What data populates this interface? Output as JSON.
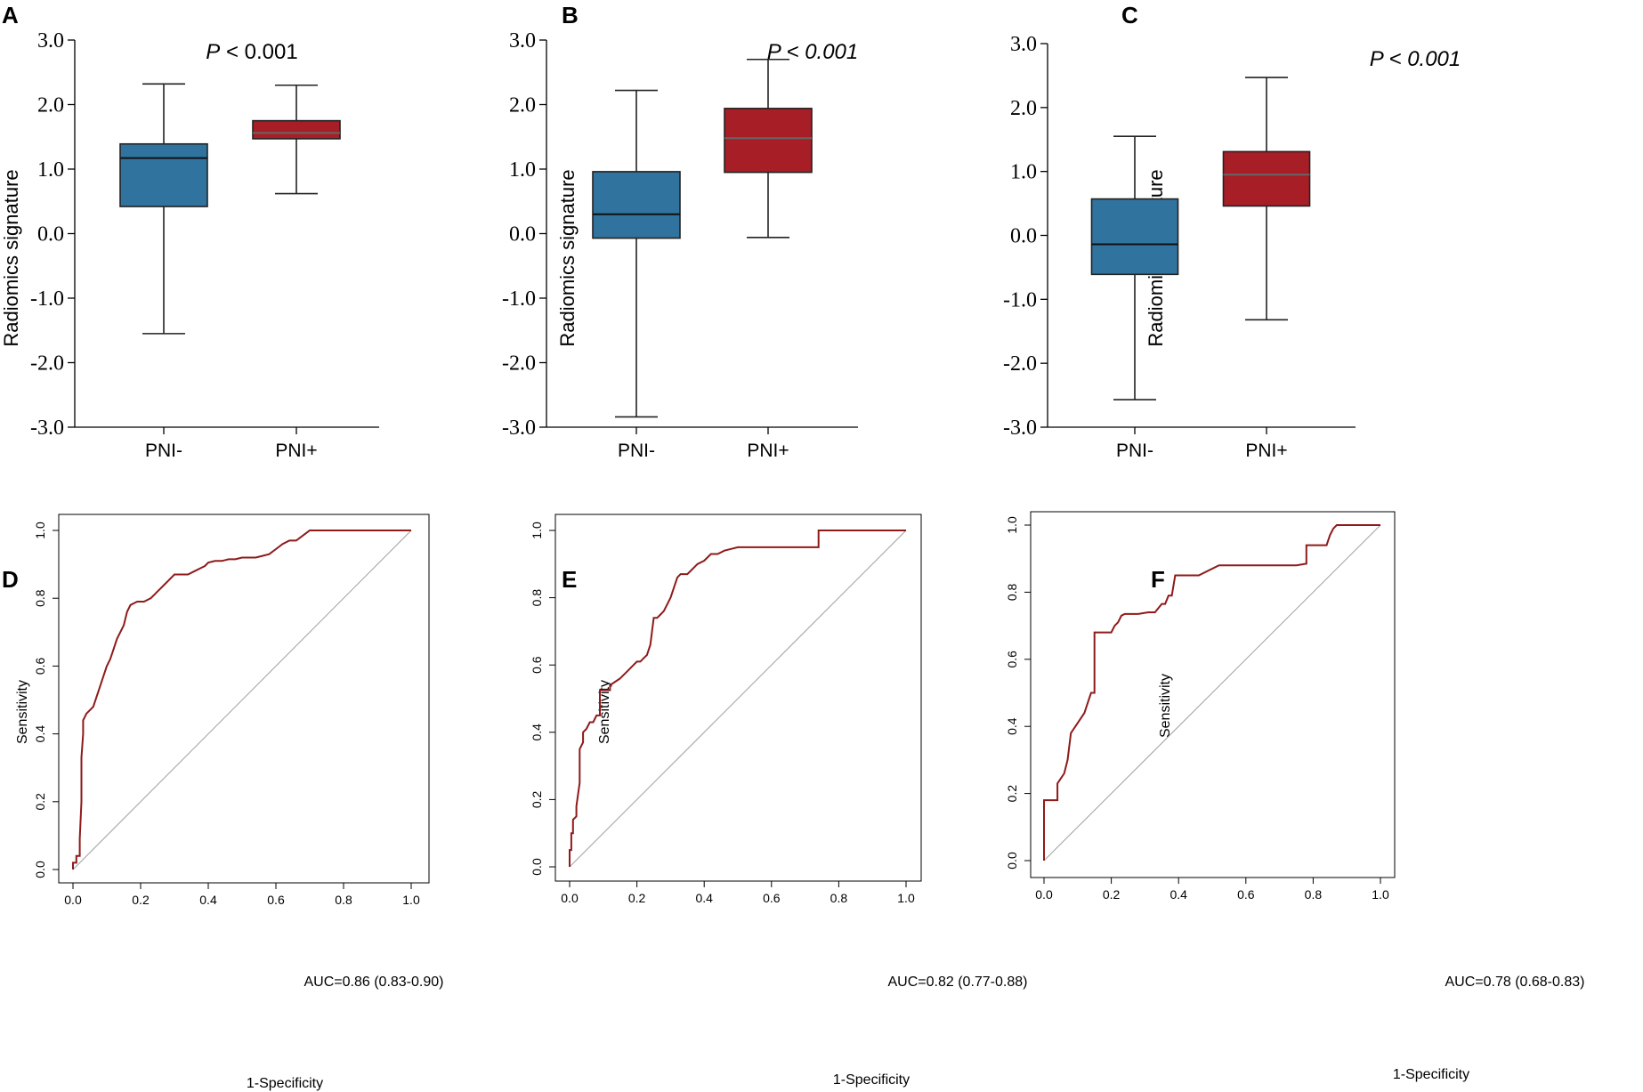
{
  "colors": {
    "neg": "#31739f",
    "pos": "#a81e26",
    "roc": "#8e1a1a",
    "diag": "#a0a0a0",
    "median_neg": "#111111",
    "median_pos": "#666666"
  },
  "chart_data": [
    {
      "id": "A",
      "type": "box",
      "panel_label": "A",
      "ylabel": "Radiomics signature",
      "p_prefix": "P",
      "p_rest": " < 0.001",
      "p_italic_all": false,
      "ylim": [
        -3.0,
        3.0
      ],
      "yticks": [
        "3.0",
        "2.0",
        "1.0",
        "0.0",
        "-1.0",
        "-2.0",
        "-3.0"
      ],
      "categories": [
        "PNI-",
        "PNI+"
      ],
      "boxes": [
        {
          "name": "PNI-",
          "min": -1.55,
          "q1": 0.42,
          "median": 1.17,
          "q3": 1.39,
          "max": 2.32
        },
        {
          "name": "PNI+",
          "min": 0.62,
          "q1": 1.47,
          "median": 1.56,
          "q3": 1.75,
          "max": 2.3
        }
      ]
    },
    {
      "id": "B",
      "type": "box",
      "panel_label": "B",
      "ylabel": "Radiomics signature",
      "p_prefix": "P",
      "p_rest": " < 0.001",
      "p_italic_all": true,
      "ylim": [
        -3.0,
        3.0
      ],
      "yticks": [
        "3.0",
        "2.0",
        "1.0",
        "0.0",
        "-1.0",
        "-2.0",
        "-3.0"
      ],
      "categories": [
        "PNI-",
        "PNI+"
      ],
      "boxes": [
        {
          "name": "PNI-",
          "min": -2.84,
          "q1": -0.07,
          "median": 0.3,
          "q3": 0.96,
          "max": 2.22
        },
        {
          "name": "PNI+",
          "min": -0.06,
          "q1": 0.95,
          "median": 1.48,
          "q3": 1.94,
          "max": 2.7
        }
      ]
    },
    {
      "id": "C",
      "type": "box",
      "panel_label": "C",
      "ylabel": "Radiomics signature",
      "p_prefix": "P",
      "p_rest": " < 0.001",
      "p_italic_all": true,
      "ylim": [
        -3.0,
        3.0
      ],
      "yticks": [
        "3.0",
        "2.0",
        "1.0",
        "0.0",
        "-1.0",
        "-2.0",
        "-3.0"
      ],
      "categories": [
        "PNI-",
        "PNI+"
      ],
      "boxes": [
        {
          "name": "PNI-",
          "min": -2.57,
          "q1": -0.61,
          "median": -0.14,
          "q3": 0.57,
          "max": 1.55
        },
        {
          "name": "PNI+",
          "min": -1.32,
          "q1": 0.46,
          "median": 0.95,
          "q3": 1.31,
          "max": 2.47
        }
      ]
    },
    {
      "id": "D",
      "type": "line",
      "panel_label": "D",
      "xlabel": "1-Specificity",
      "ylabel": "Sensitivity",
      "ticks": [
        "0.0",
        "0.2",
        "0.4",
        "0.6",
        "0.8",
        "1.0"
      ],
      "auc_text": "AUC=0.86 (0.83-0.90)",
      "x": [
        0.0,
        0.0,
        0.01,
        0.01,
        0.02,
        0.02,
        0.025,
        0.025,
        0.03,
        0.03,
        0.04,
        0.05,
        0.06,
        0.07,
        0.08,
        0.09,
        0.1,
        0.11,
        0.12,
        0.13,
        0.14,
        0.15,
        0.16,
        0.17,
        0.18,
        0.19,
        0.2,
        0.21,
        0.22,
        0.23,
        0.24,
        0.25,
        0.26,
        0.27,
        0.28,
        0.3,
        0.32,
        0.34,
        0.36,
        0.38,
        0.39,
        0.4,
        0.42,
        0.44,
        0.46,
        0.48,
        0.5,
        0.52,
        0.54,
        0.56,
        0.58,
        0.6,
        0.62,
        0.64,
        0.66,
        0.68,
        0.7,
        0.8,
        0.9,
        1.0
      ],
      "y": [
        0.0,
        0.02,
        0.02,
        0.04,
        0.04,
        0.09,
        0.2,
        0.33,
        0.4,
        0.44,
        0.46,
        0.47,
        0.48,
        0.51,
        0.54,
        0.57,
        0.6,
        0.62,
        0.65,
        0.68,
        0.7,
        0.72,
        0.76,
        0.78,
        0.785,
        0.79,
        0.79,
        0.79,
        0.795,
        0.8,
        0.81,
        0.82,
        0.83,
        0.84,
        0.85,
        0.87,
        0.87,
        0.87,
        0.88,
        0.89,
        0.895,
        0.905,
        0.91,
        0.91,
        0.915,
        0.915,
        0.92,
        0.92,
        0.92,
        0.925,
        0.93,
        0.945,
        0.96,
        0.97,
        0.97,
        0.985,
        1.0,
        1.0,
        1.0,
        1.0
      ]
    },
    {
      "id": "E",
      "type": "line",
      "panel_label": "E",
      "xlabel": "1-Specificity",
      "ylabel": "Sensitivity",
      "ticks": [
        "0.0",
        "0.2",
        "0.4",
        "0.6",
        "0.8",
        "1.0"
      ],
      "auc_text": "AUC=0.82 (0.77-0.88)",
      "x": [
        0.0,
        0.0,
        0.005,
        0.005,
        0.01,
        0.01,
        0.02,
        0.02,
        0.03,
        0.03,
        0.04,
        0.04,
        0.05,
        0.06,
        0.07,
        0.08,
        0.09,
        0.09,
        0.12,
        0.12,
        0.15,
        0.17,
        0.19,
        0.2,
        0.21,
        0.22,
        0.23,
        0.24,
        0.25,
        0.26,
        0.27,
        0.28,
        0.29,
        0.3,
        0.32,
        0.33,
        0.35,
        0.36,
        0.38,
        0.4,
        0.42,
        0.44,
        0.46,
        0.48,
        0.5,
        0.72,
        0.74,
        0.74,
        1.0
      ],
      "y": [
        0.0,
        0.05,
        0.05,
        0.1,
        0.1,
        0.14,
        0.15,
        0.18,
        0.25,
        0.35,
        0.37,
        0.4,
        0.41,
        0.43,
        0.43,
        0.45,
        0.45,
        0.525,
        0.525,
        0.54,
        0.56,
        0.58,
        0.6,
        0.61,
        0.61,
        0.62,
        0.63,
        0.66,
        0.74,
        0.74,
        0.75,
        0.76,
        0.78,
        0.8,
        0.86,
        0.87,
        0.87,
        0.88,
        0.9,
        0.91,
        0.93,
        0.93,
        0.94,
        0.945,
        0.95,
        0.95,
        0.95,
        1.0,
        1.0
      ]
    },
    {
      "id": "F",
      "type": "line",
      "panel_label": "F",
      "xlabel": "1-Specificity",
      "ylabel": "Sensitivity",
      "ticks": [
        "0.0",
        "0.2",
        "0.4",
        "0.6",
        "0.8",
        "1.0"
      ],
      "auc_text": "AUC=0.78 (0.68-0.83)",
      "x": [
        0.0,
        0.0,
        0.04,
        0.04,
        0.06,
        0.07,
        0.08,
        0.1,
        0.12,
        0.13,
        0.14,
        0.14,
        0.15,
        0.15,
        0.2,
        0.21,
        0.22,
        0.23,
        0.24,
        0.28,
        0.31,
        0.33,
        0.35,
        0.36,
        0.37,
        0.38,
        0.39,
        0.42,
        0.46,
        0.52,
        0.55,
        0.65,
        0.75,
        0.78,
        0.78,
        0.84,
        0.85,
        0.86,
        0.87,
        0.88,
        0.9,
        1.0
      ],
      "y": [
        0.0,
        0.18,
        0.18,
        0.23,
        0.26,
        0.3,
        0.38,
        0.41,
        0.44,
        0.47,
        0.5,
        0.5,
        0.5,
        0.68,
        0.68,
        0.7,
        0.71,
        0.73,
        0.735,
        0.735,
        0.74,
        0.74,
        0.765,
        0.765,
        0.79,
        0.79,
        0.85,
        0.85,
        0.85,
        0.88,
        0.88,
        0.88,
        0.88,
        0.885,
        0.94,
        0.94,
        0.97,
        0.99,
        1.0,
        1.0,
        1.0,
        1.0
      ]
    }
  ]
}
